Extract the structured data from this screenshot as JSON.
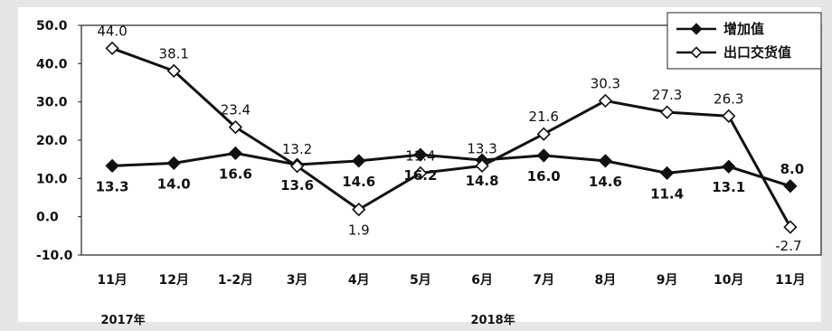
{
  "chart_data": {
    "type": "line",
    "categories": [
      "11月",
      "12月",
      "1-2月",
      "3月",
      "4月",
      "5月",
      "6月",
      "7月",
      "8月",
      "9月",
      "10月",
      "11月"
    ],
    "group_labels": [
      "2017年",
      "2018年"
    ],
    "ylim": [
      -10,
      50
    ],
    "yticks": [
      "50.0",
      "40.0",
      "30.0",
      "20.0",
      "10.0",
      "0.0",
      "-10.0"
    ],
    "grid": false,
    "legend_position": "top-right",
    "series": [
      {
        "name": "增加值",
        "marker": "filled-diamond",
        "color": "#111111",
        "values": [
          13.3,
          14.0,
          16.6,
          13.6,
          14.6,
          16.2,
          14.8,
          16.0,
          14.6,
          11.4,
          13.1,
          8.0
        ],
        "labels": [
          "13.3",
          "14.0",
          "16.6",
          "13.6",
          "14.6",
          "16.2",
          "14.8",
          "16.0",
          "14.6",
          "11.4",
          "13.1",
          "8.0"
        ]
      },
      {
        "name": "出口交货值",
        "marker": "hollow-diamond",
        "color": "#111111",
        "values": [
          44.0,
          38.1,
          23.4,
          13.2,
          1.9,
          11.4,
          13.3,
          21.6,
          30.3,
          27.3,
          26.3,
          -2.7
        ],
        "labels": [
          "44.0",
          "38.1",
          "23.4",
          "13.2",
          "1.9",
          "11.4",
          "13.3",
          "21.6",
          "30.3",
          "27.3",
          "26.3",
          "-2.7"
        ]
      }
    ]
  }
}
